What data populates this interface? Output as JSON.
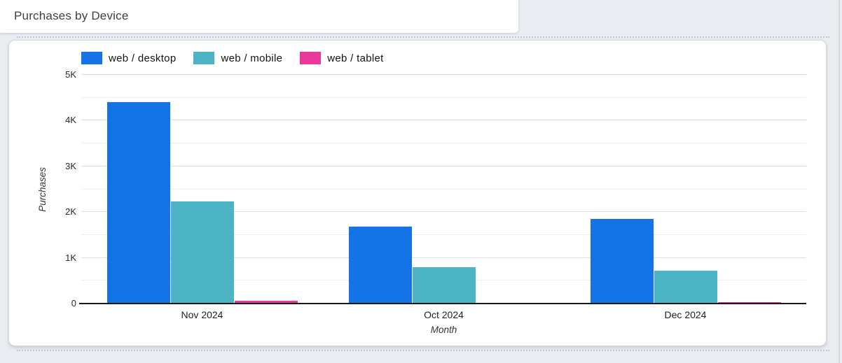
{
  "header": {
    "title": "Purchases by Device"
  },
  "chart_data": {
    "type": "bar",
    "title": "Purchases by Device",
    "categories": [
      "Nov 2024",
      "Oct 2024",
      "Dec 2024"
    ],
    "series": [
      {
        "name": "web / desktop",
        "color": "#1473E6",
        "values": [
          4400,
          1680,
          1850
        ]
      },
      {
        "name": "web / mobile",
        "color": "#4CB4C5",
        "values": [
          2230,
          800,
          720
        ]
      },
      {
        "name": "web / tablet",
        "color": "#E8399B",
        "values": [
          60,
          0,
          30
        ]
      }
    ],
    "xlabel": "Month",
    "ylabel": "Purchases",
    "ylim": [
      0,
      5000
    ],
    "y_major_step": 1000,
    "y_minor_step": 500,
    "yticks": [
      "0",
      "1K",
      "2K",
      "3K",
      "4K",
      "5K"
    ],
    "grid": true,
    "legend_position": "top",
    "zero_bar_color": "#cfcfcf"
  }
}
